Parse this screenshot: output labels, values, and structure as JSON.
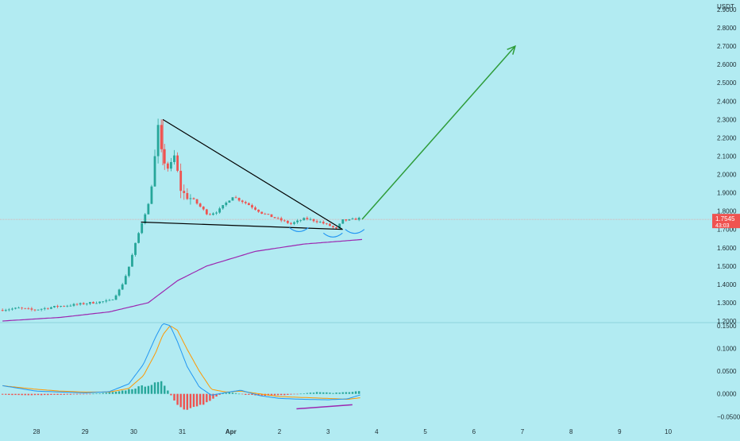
{
  "theme": {
    "background": "#b2ebf2",
    "up_color": "#26a69a",
    "down_color": "#ef5350",
    "ma_color": "#9c27b0",
    "macd_line_color": "#2196f3",
    "signal_line_color": "#ff9800",
    "trend_color": "#000000",
    "arrow_color": "#2e9c3a",
    "price_line_color": "#e8a0a0",
    "badge_color": "#ef5350"
  },
  "chart_data": [
    {
      "type": "candlestick",
      "currency_label": "USDT",
      "y_ticks": [
        "2.9000",
        "2.8000",
        "2.7000",
        "2.6000",
        "2.5000",
        "2.4000",
        "2.3000",
        "2.2000",
        "2.1000",
        "2.0000",
        "1.9000",
        "1.8000",
        "1.7000",
        "1.6000",
        "1.5000",
        "1.4000",
        "1.3000",
        "1.2000"
      ],
      "y_tick_values": [
        2.9,
        2.8,
        2.7,
        2.6,
        2.5,
        2.4,
        2.3,
        2.2,
        2.1,
        2.0,
        1.9,
        1.8,
        1.7,
        1.6,
        1.5,
        1.4,
        1.3,
        1.2
      ],
      "ylim": [
        1.2,
        2.9
      ],
      "x_ticks": [
        {
          "label": "28",
          "day": 0
        },
        {
          "label": "29",
          "day": 1
        },
        {
          "label": "30",
          "day": 2
        },
        {
          "label": "31",
          "day": 3
        },
        {
          "label": "Apr",
          "day": 4
        },
        {
          "label": "2",
          "day": 5
        },
        {
          "label": "3",
          "day": 6
        },
        {
          "label": "4",
          "day": 7
        },
        {
          "label": "5",
          "day": 8
        },
        {
          "label": "6",
          "day": 9
        },
        {
          "label": "7",
          "day": 10
        },
        {
          "label": "8",
          "day": 11
        },
        {
          "label": "9",
          "day": 12
        },
        {
          "label": "10",
          "day": 13
        }
      ],
      "last_price": {
        "value": 1.7545,
        "label": "1.7545",
        "countdown": "43:03"
      },
      "price_keyframes": [
        {
          "day": -0.7,
          "price": 1.26
        },
        {
          "day": -0.3,
          "price": 1.27
        },
        {
          "day": 0.0,
          "price": 1.26
        },
        {
          "day": 0.5,
          "price": 1.28
        },
        {
          "day": 0.9,
          "price": 1.29
        },
        {
          "day": 1.2,
          "price": 1.3
        },
        {
          "day": 1.6,
          "price": 1.31
        },
        {
          "day": 1.8,
          "price": 1.38
        },
        {
          "day": 1.95,
          "price": 1.48
        },
        {
          "day": 2.1,
          "price": 1.62
        },
        {
          "day": 2.25,
          "price": 1.75
        },
        {
          "day": 2.4,
          "price": 1.86
        },
        {
          "day": 2.55,
          "price": 2.2
        },
        {
          "day": 2.65,
          "price": 2.1
        },
        {
          "day": 2.8,
          "price": 2.02
        },
        {
          "day": 2.9,
          "price": 2.1
        },
        {
          "day": 3.05,
          "price": 1.9
        },
        {
          "day": 3.3,
          "price": 1.86
        },
        {
          "day": 3.6,
          "price": 1.78
        },
        {
          "day": 3.8,
          "price": 1.8
        },
        {
          "day": 4.1,
          "price": 1.88
        },
        {
          "day": 4.4,
          "price": 1.84
        },
        {
          "day": 4.7,
          "price": 1.79
        },
        {
          "day": 5.0,
          "price": 1.76
        },
        {
          "day": 5.3,
          "price": 1.73
        },
        {
          "day": 5.6,
          "price": 1.76
        },
        {
          "day": 5.9,
          "price": 1.74
        },
        {
          "day": 6.1,
          "price": 1.72
        },
        {
          "day": 6.25,
          "price": 1.7
        },
        {
          "day": 6.35,
          "price": 1.75
        },
        {
          "day": 6.5,
          "price": 1.75
        },
        {
          "day": 6.7,
          "price": 1.76
        }
      ],
      "moving_average": [
        {
          "day": -0.7,
          "price": 1.2
        },
        {
          "day": 0.5,
          "price": 1.22
        },
        {
          "day": 1.5,
          "price": 1.25
        },
        {
          "day": 2.3,
          "price": 1.3
        },
        {
          "day": 2.9,
          "price": 1.42
        },
        {
          "day": 3.5,
          "price": 1.5
        },
        {
          "day": 4.5,
          "price": 1.58
        },
        {
          "day": 5.5,
          "price": 1.62
        },
        {
          "day": 6.7,
          "price": 1.645
        }
      ],
      "drawings": {
        "triangle_upper": {
          "from": {
            "day": 2.6,
            "price": 2.3
          },
          "to": {
            "day": 6.3,
            "price": 1.7
          }
        },
        "triangle_lower": {
          "from": {
            "day": 2.15,
            "price": 1.74
          },
          "to": {
            "day": 6.3,
            "price": 1.7
          }
        },
        "target_arrow": {
          "from": {
            "day": 6.7,
            "price": 1.755
          },
          "to": {
            "day": 9.85,
            "price": 2.7
          }
        },
        "bottom_arcs": [
          {
            "day": 5.4,
            "price": 1.71
          },
          {
            "day": 6.1,
            "price": 1.68
          },
          {
            "day": 6.55,
            "price": 1.7
          }
        ]
      }
    },
    {
      "type": "macd",
      "y_ticks": [
        "0.1500",
        "0.1000",
        "0.0500",
        "0.0000",
        "−0.0500"
      ],
      "y_tick_values": [
        0.15,
        0.1,
        0.05,
        0.0,
        -0.05
      ],
      "ylim": [
        -0.06,
        0.155
      ],
      "macd_keyframes": [
        {
          "day": -0.7,
          "value": 0.018
        },
        {
          "day": 0.0,
          "value": 0.006
        },
        {
          "day": 0.5,
          "value": 0.004
        },
        {
          "day": 1.0,
          "value": 0.002
        },
        {
          "day": 1.5,
          "value": 0.005
        },
        {
          "day": 1.9,
          "value": 0.022
        },
        {
          "day": 2.2,
          "value": 0.065
        },
        {
          "day": 2.45,
          "value": 0.125
        },
        {
          "day": 2.6,
          "value": 0.155
        },
        {
          "day": 2.75,
          "value": 0.15
        },
        {
          "day": 2.9,
          "value": 0.115
        },
        {
          "day": 3.1,
          "value": 0.06
        },
        {
          "day": 3.35,
          "value": 0.015
        },
        {
          "day": 3.6,
          "value": -0.003
        },
        {
          "day": 3.9,
          "value": 0.003
        },
        {
          "day": 4.2,
          "value": 0.008
        },
        {
          "day": 4.6,
          "value": -0.004
        },
        {
          "day": 5.0,
          "value": -0.01
        },
        {
          "day": 5.5,
          "value": -0.012
        },
        {
          "day": 6.0,
          "value": -0.013
        },
        {
          "day": 6.4,
          "value": -0.011
        },
        {
          "day": 6.7,
          "value": -0.001
        }
      ],
      "signal_keyframes": [
        {
          "day": -0.7,
          "value": 0.018
        },
        {
          "day": 0.0,
          "value": 0.01
        },
        {
          "day": 0.5,
          "value": 0.006
        },
        {
          "day": 1.0,
          "value": 0.004
        },
        {
          "day": 1.5,
          "value": 0.004
        },
        {
          "day": 1.9,
          "value": 0.012
        },
        {
          "day": 2.2,
          "value": 0.04
        },
        {
          "day": 2.45,
          "value": 0.09
        },
        {
          "day": 2.6,
          "value": 0.13
        },
        {
          "day": 2.75,
          "value": 0.15
        },
        {
          "day": 2.9,
          "value": 0.14
        },
        {
          "day": 3.1,
          "value": 0.098
        },
        {
          "day": 3.35,
          "value": 0.05
        },
        {
          "day": 3.6,
          "value": 0.01
        },
        {
          "day": 3.9,
          "value": 0.004
        },
        {
          "day": 4.2,
          "value": 0.006
        },
        {
          "day": 4.6,
          "value": 0.0
        },
        {
          "day": 5.0,
          "value": -0.006
        },
        {
          "day": 5.5,
          "value": -0.008
        },
        {
          "day": 6.0,
          "value": -0.01
        },
        {
          "day": 6.4,
          "value": -0.012
        },
        {
          "day": 6.7,
          "value": -0.008
        }
      ],
      "histogram_keyframes": [
        {
          "day": -0.7,
          "value": -0.002
        },
        {
          "day": 0.0,
          "value": -0.003
        },
        {
          "day": 0.5,
          "value": -0.002
        },
        {
          "day": 1.0,
          "value": -0.001
        },
        {
          "day": 1.4,
          "value": 0.002
        },
        {
          "day": 1.7,
          "value": 0.005
        },
        {
          "day": 2.0,
          "value": 0.012
        },
        {
          "day": 2.3,
          "value": 0.02
        },
        {
          "day": 2.6,
          "value": 0.025
        },
        {
          "day": 2.75,
          "value": 0.0
        },
        {
          "day": 2.8,
          "value": -0.01
        },
        {
          "day": 3.0,
          "value": -0.037
        },
        {
          "day": 3.3,
          "value": -0.032
        },
        {
          "day": 3.6,
          "value": -0.012
        },
        {
          "day": 3.8,
          "value": 0.0
        },
        {
          "day": 4.0,
          "value": 0.003
        },
        {
          "day": 4.3,
          "value": -0.002
        },
        {
          "day": 4.7,
          "value": -0.004
        },
        {
          "day": 5.1,
          "value": -0.003
        },
        {
          "day": 5.5,
          "value": 0.001
        },
        {
          "day": 5.8,
          "value": 0.004
        },
        {
          "day": 6.1,
          "value": 0.002
        },
        {
          "day": 6.4,
          "value": 0.004
        },
        {
          "day": 6.7,
          "value": 0.006
        }
      ],
      "divergence_line": {
        "from": {
          "day": 5.35,
          "value": -0.033
        },
        "to": {
          "day": 6.5,
          "value": -0.024
        }
      }
    }
  ]
}
